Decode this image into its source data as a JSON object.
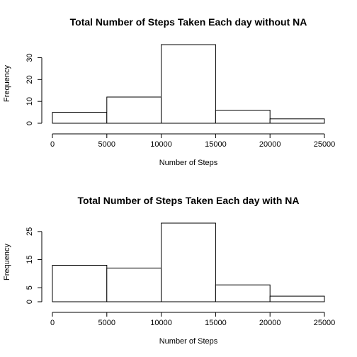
{
  "chart_data": [
    {
      "type": "bar",
      "title": "Total Number of Steps Taken Each day without NA",
      "xlabel": "Number of Steps",
      "ylabel": "Frequency",
      "bin_edges": [
        0,
        5000,
        10000,
        15000,
        20000,
        25000
      ],
      "values": [
        5,
        12,
        36,
        6,
        2
      ],
      "xlim": [
        0,
        25000
      ],
      "ylim": [
        0,
        36
      ],
      "x_ticks": [
        0,
        5000,
        10000,
        15000,
        20000,
        25000
      ],
      "y_ticks": [
        0,
        10,
        20,
        30
      ],
      "grid": false,
      "legend": "none"
    },
    {
      "type": "bar",
      "title": "Total Number of Steps Taken Each day with NA",
      "xlabel": "Number of Steps",
      "ylabel": "Frequency",
      "bin_edges": [
        0,
        5000,
        10000,
        15000,
        20000,
        25000
      ],
      "values": [
        13,
        12,
        28,
        6,
        2
      ],
      "xlim": [
        0,
        25000
      ],
      "ylim": [
        0,
        28
      ],
      "x_ticks": [
        0,
        5000,
        10000,
        15000,
        20000,
        25000
      ],
      "y_ticks": [
        0,
        5,
        15,
        25
      ],
      "grid": false,
      "legend": "none"
    }
  ]
}
